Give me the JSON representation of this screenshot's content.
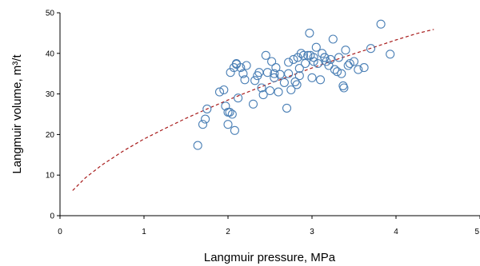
{
  "chart_data": {
    "type": "scatter",
    "xlabel": "Langmuir pressure, MPa",
    "ylabel": "Langmuir volume, m³/t",
    "xlim": [
      0,
      5
    ],
    "ylim": [
      0,
      50
    ],
    "xticks": [
      "0",
      "1",
      "2",
      "3",
      "4",
      "5"
    ],
    "yticks": [
      "0",
      "10",
      "20",
      "30",
      "40",
      "50"
    ],
    "grid": false,
    "legend": "none",
    "colors": {
      "points": "#4a7fb5",
      "fit": "#a81c1c",
      "axis": "#000000"
    },
    "series": [
      {
        "kind": "points",
        "x": [
          1.64,
          1.7,
          1.73,
          1.75,
          1.9,
          1.95,
          1.97,
          2.0,
          2.02,
          2.03,
          2.05,
          2.07,
          2.08,
          2.1,
          2.12,
          2.15,
          2.18,
          2.2,
          2.22,
          2.3,
          2.32,
          2.35,
          2.37,
          2.4,
          2.42,
          2.45,
          2.47,
          2.5,
          2.52,
          2.55,
          2.57,
          2.6,
          2.62,
          2.67,
          2.7,
          2.72,
          2.75,
          2.78,
          2.8,
          2.82,
          2.83,
          2.85,
          2.87,
          2.9,
          2.92,
          2.95,
          2.97,
          3.0,
          3.02,
          3.05,
          3.07,
          3.1,
          3.12,
          3.15,
          3.17,
          3.2,
          3.22,
          3.25,
          3.27,
          3.3,
          3.32,
          3.35,
          3.37,
          3.38,
          3.4,
          3.43,
          3.45,
          3.5,
          3.55,
          3.62,
          3.7,
          3.82,
          3.93,
          2.0,
          2.1,
          2.55,
          2.72,
          2.98,
          3.02,
          3.15,
          2.85
        ],
        "y": [
          17.3,
          22.5,
          23.8,
          26.3,
          30.5,
          31.0,
          27.0,
          22.5,
          25.5,
          35.3,
          25.0,
          36.5,
          21.0,
          37.3,
          29.0,
          36.5,
          35.0,
          33.5,
          37.0,
          27.5,
          33.3,
          34.5,
          35.3,
          31.5,
          29.8,
          39.5,
          35.3,
          30.8,
          38.0,
          34.0,
          36.5,
          30.5,
          34.8,
          32.8,
          26.5,
          35.0,
          31.0,
          38.5,
          33.0,
          32.3,
          39.0,
          36.3,
          40.0,
          39.5,
          37.5,
          39.5,
          45.0,
          34.0,
          39.0,
          41.5,
          37.5,
          33.5,
          40.0,
          39.0,
          38.0,
          37.0,
          38.5,
          43.5,
          36.0,
          35.5,
          39.0,
          35.0,
          32.0,
          31.5,
          40.8,
          37.0,
          37.5,
          38.0,
          36.0,
          36.5,
          41.2,
          47.2,
          39.8,
          25.5,
          37.5,
          35.0,
          37.8,
          39.5,
          38.0,
          39.0,
          34.5
        ]
      },
      {
        "kind": "fit-line",
        "style": "dashed",
        "x": [
          0.15,
          0.3,
          0.5,
          0.75,
          1.0,
          1.25,
          1.5,
          1.75,
          2.0,
          2.25,
          2.5,
          2.75,
          3.0,
          3.25,
          3.5,
          3.75,
          4.0,
          4.25,
          4.45
        ],
        "y": [
          6.2,
          9.3,
          12.5,
          15.9,
          18.9,
          21.5,
          24.0,
          26.3,
          28.5,
          30.6,
          32.6,
          34.5,
          36.4,
          38.2,
          39.9,
          41.6,
          43.3,
          44.9,
          45.9
        ]
      }
    ]
  }
}
